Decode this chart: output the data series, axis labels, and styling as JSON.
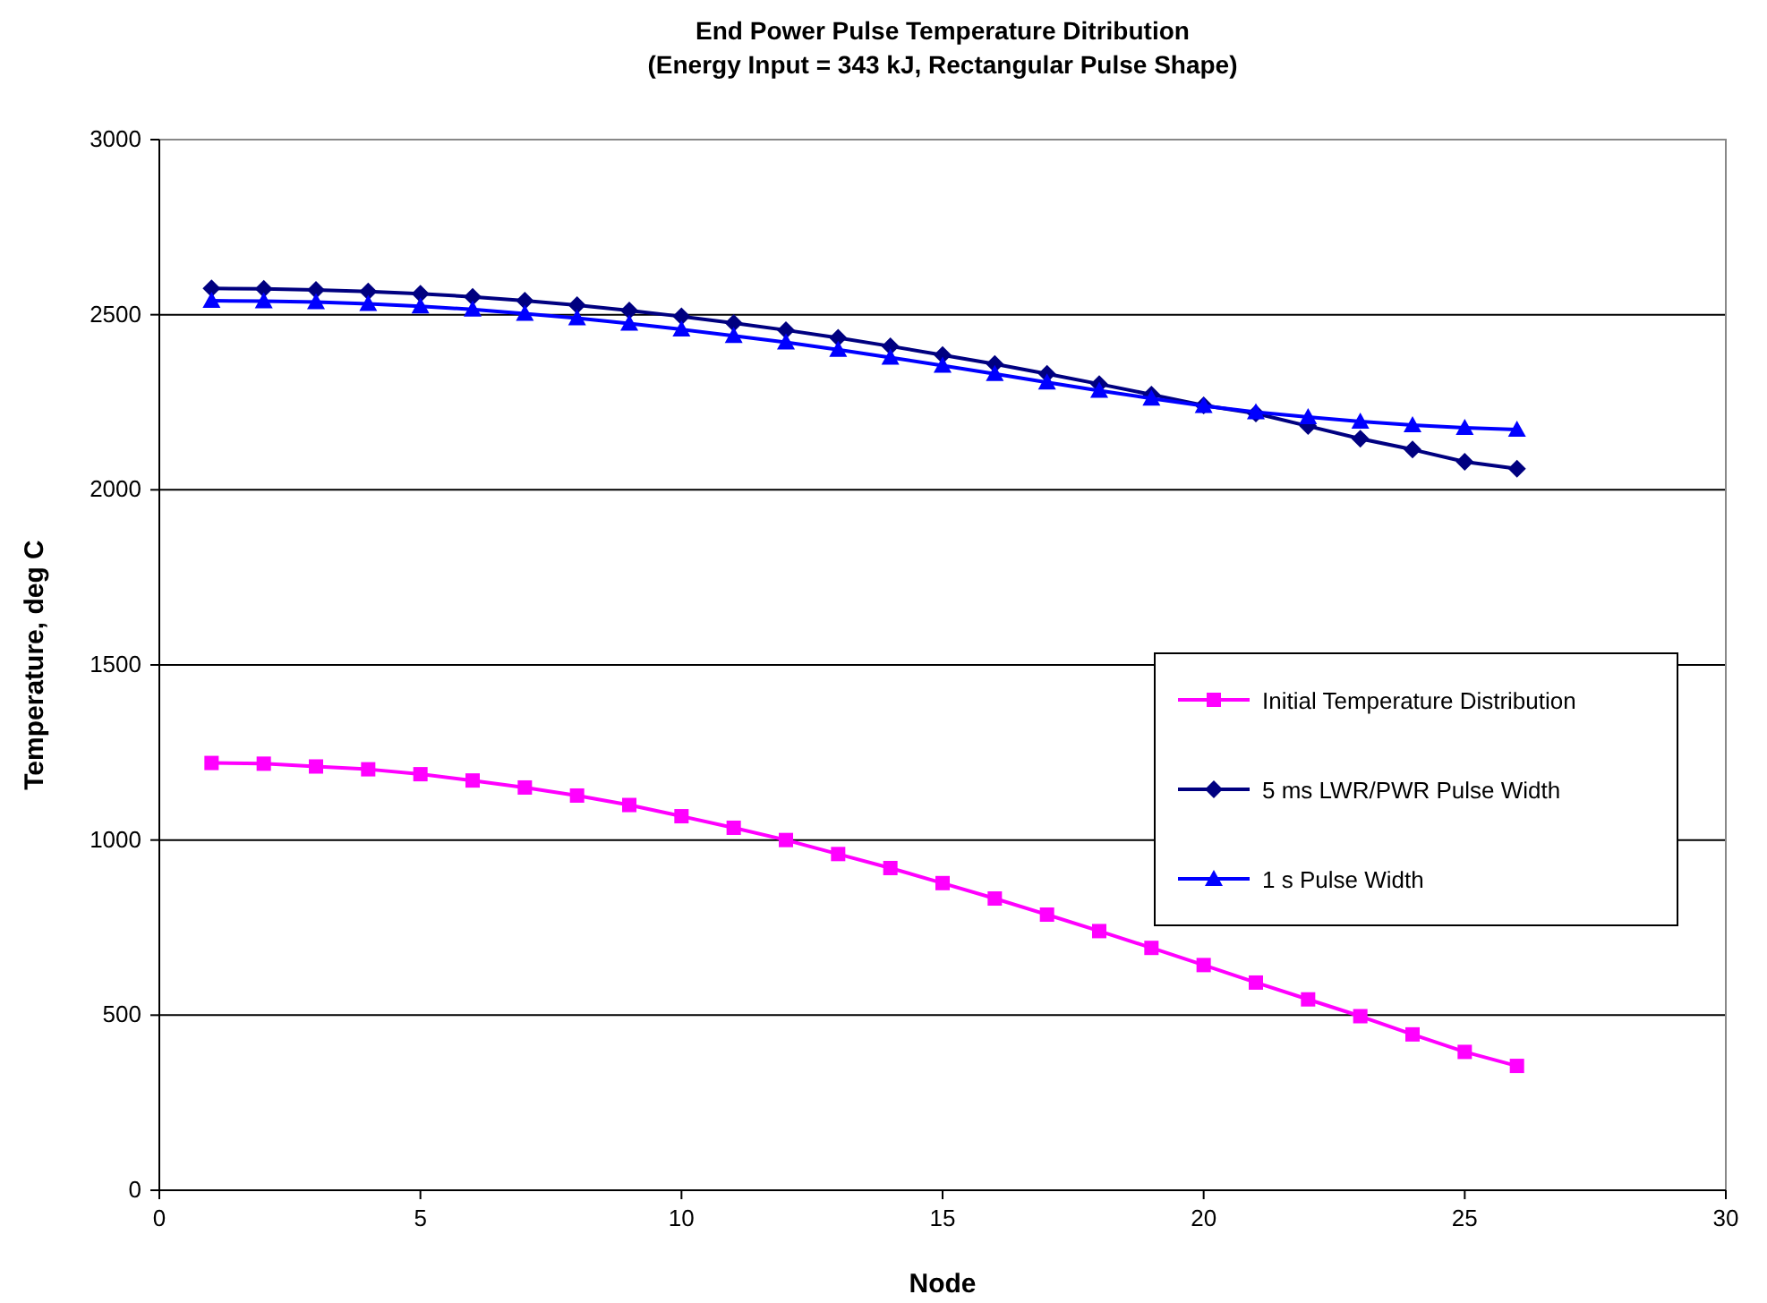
{
  "chart_data": {
    "type": "line",
    "title": "End Power Pulse Temperature Ditribution",
    "subtitle": "(Energy Input = 343 kJ, Rectangular Pulse Shape)",
    "xlabel": "Node",
    "ylabel": "Temperature, deg C",
    "x": [
      1,
      2,
      3,
      4,
      5,
      6,
      7,
      8,
      9,
      10,
      11,
      12,
      13,
      14,
      15,
      16,
      17,
      18,
      19,
      20,
      21,
      22,
      23,
      24,
      25,
      26
    ],
    "xlim": [
      0,
      30
    ],
    "xticks": [
      0,
      5,
      10,
      15,
      20,
      25,
      30
    ],
    "ylim": [
      0,
      3000
    ],
    "yticks": [
      0,
      500,
      1000,
      1500,
      2000,
      2500,
      3000
    ],
    "grid": "y",
    "legend": "right",
    "series": [
      {
        "name": "Initial Temperature Distribution",
        "color": "#ff00ff",
        "marker": "square",
        "values": [
          1220,
          1218,
          1210,
          1202,
          1188,
          1170,
          1150,
          1127,
          1100,
          1068,
          1035,
          1000,
          960,
          920,
          877,
          833,
          787,
          740,
          692,
          643,
          593,
          545,
          497,
          445,
          395,
          355
        ]
      },
      {
        "name": "5 ms LWR/PWR Pulse Width",
        "color": "#000080",
        "marker": "diamond",
        "values": [
          2575,
          2574,
          2571,
          2566,
          2560,
          2551,
          2540,
          2527,
          2512,
          2495,
          2476,
          2456,
          2434,
          2410,
          2385,
          2359,
          2331,
          2302,
          2272,
          2241,
          2218,
          2182,
          2146,
          2115,
          2080,
          2060
        ]
      },
      {
        "name": "1 s Pulse Width",
        "color": "#0000ff",
        "marker": "triangle",
        "values": [
          2540,
          2539,
          2536,
          2531,
          2524,
          2515,
          2503,
          2490,
          2475,
          2458,
          2440,
          2421,
          2400,
          2378,
          2355,
          2331,
          2307,
          2283,
          2261,
          2240,
          2222,
          2208,
          2195,
          2185,
          2177,
          2172
        ]
      }
    ]
  }
}
